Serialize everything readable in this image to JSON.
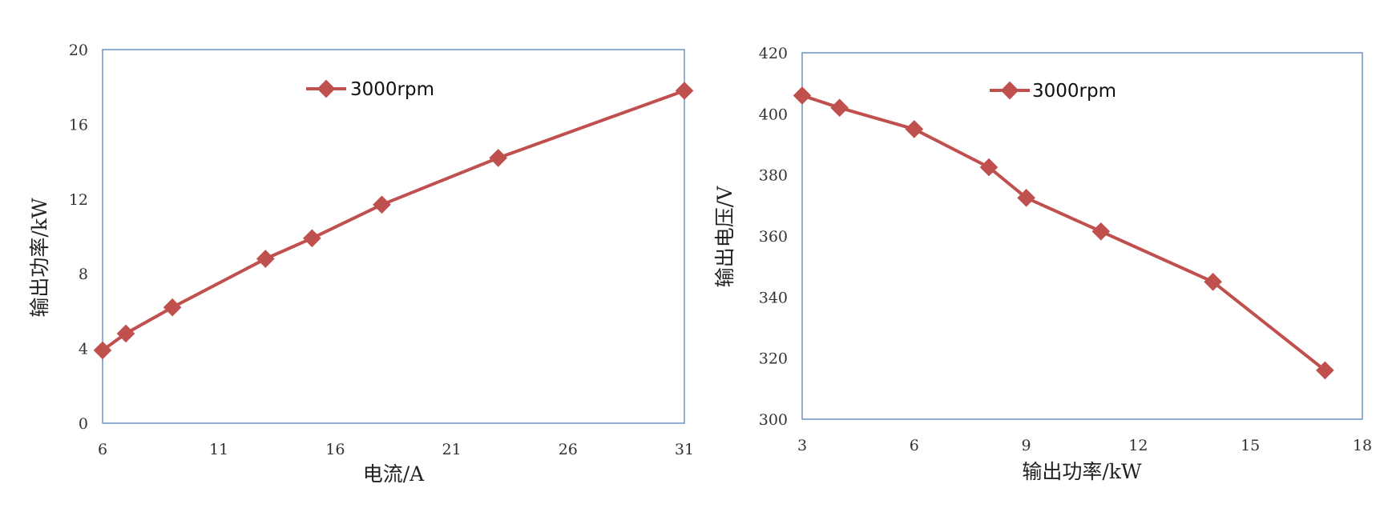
{
  "chart_data": [
    {
      "type": "line",
      "xlabel": "电流/A",
      "ylabel": "输出功率/kW",
      "xlim": [
        6,
        31
      ],
      "ylim": [
        0,
        20
      ],
      "xticks": [
        "6",
        "11",
        "16",
        "21",
        "26",
        "31"
      ],
      "yticks": [
        "0",
        "4",
        "8",
        "12",
        "16",
        "20"
      ],
      "grid": false,
      "legend_position": "top-center",
      "series": [
        {
          "name": "3000rpm",
          "color": "#C0504D",
          "marker": "diamond",
          "x": [
            6,
            7,
            9,
            13,
            15,
            18,
            23,
            31
          ],
          "y": [
            3.9,
            4.8,
            6.2,
            8.8,
            9.9,
            11.7,
            14.2,
            17.8
          ]
        }
      ]
    },
    {
      "type": "line",
      "xlabel": "输出功率/kW",
      "ylabel": "输出电压/V",
      "xlim": [
        3,
        18
      ],
      "ylim": [
        300,
        420
      ],
      "xticks": [
        "3",
        "6",
        "9",
        "12",
        "15",
        "18"
      ],
      "yticks": [
        "300",
        "320",
        "340",
        "360",
        "380",
        "400",
        "420"
      ],
      "grid": false,
      "legend_position": "top-center",
      "series": [
        {
          "name": "3000rpm",
          "color": "#C0504D",
          "marker": "diamond",
          "x": [
            3,
            4,
            6,
            8,
            9,
            11,
            14,
            17
          ],
          "y": [
            406,
            402,
            395,
            382.5,
            372.5,
            361.5,
            345,
            316
          ]
        }
      ]
    }
  ]
}
